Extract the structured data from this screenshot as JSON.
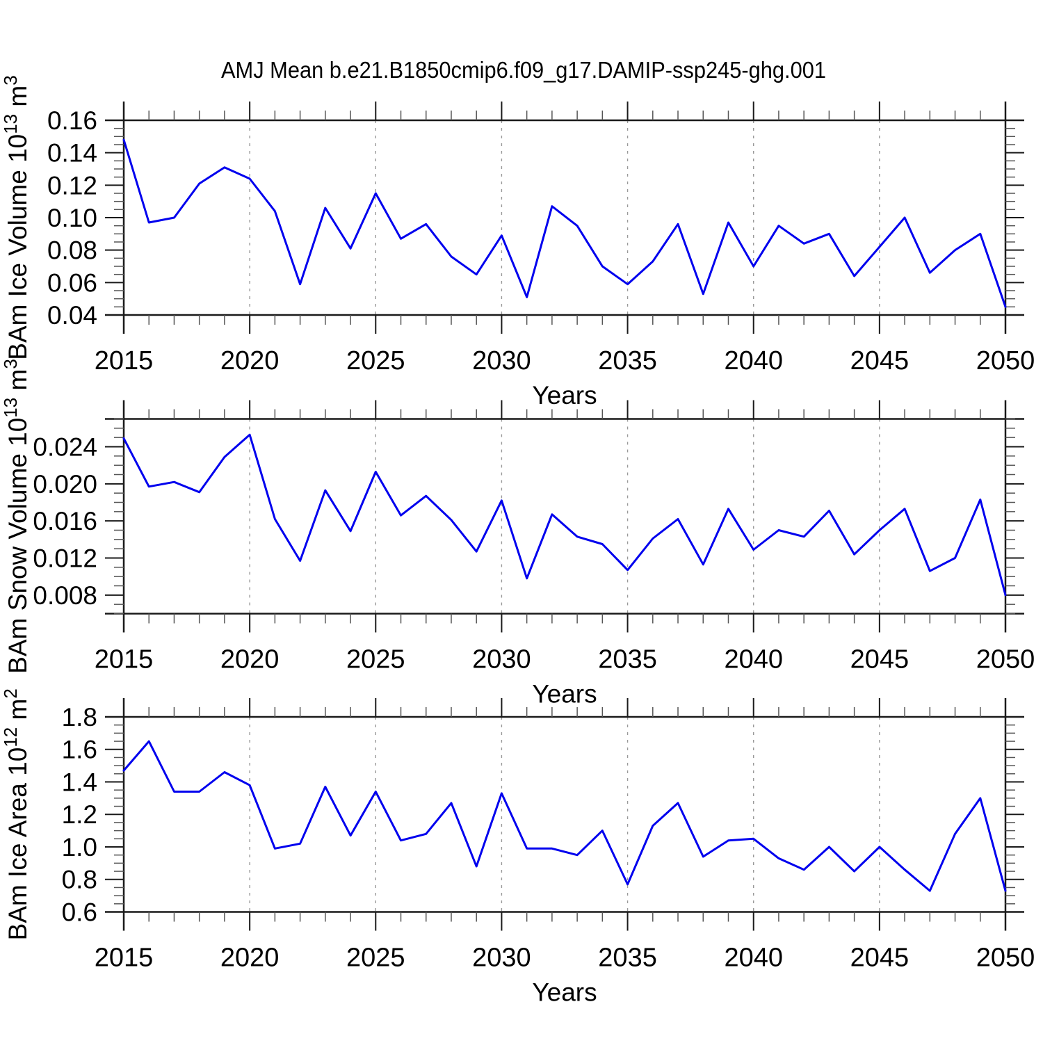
{
  "title": "AMJ Mean b.e21.B1850cmip6.f09_g17.DAMIP-ssp245-ghg.001",
  "line_color": "#0000ee",
  "grid_color": "#999999",
  "axis_color": "#1a1a1a",
  "minor_tick_color": "#555555",
  "chart_data": [
    {
      "type": "line",
      "ylabel": "BAm Ice Volume 10^13 m^3",
      "ylabel_segments": [
        {
          "t": "BAm Ice Volume 10"
        },
        {
          "t": "13",
          "sup": true
        },
        {
          "t": " m"
        },
        {
          "t": "3",
          "sup": true
        }
      ],
      "xlabel": "Years",
      "x": [
        2015,
        2016,
        2017,
        2018,
        2019,
        2020,
        2021,
        2022,
        2023,
        2024,
        2025,
        2026,
        2027,
        2028,
        2029,
        2030,
        2031,
        2032,
        2033,
        2034,
        2035,
        2036,
        2037,
        2038,
        2039,
        2040,
        2041,
        2042,
        2043,
        2044,
        2045,
        2046,
        2047,
        2048,
        2049,
        2050
      ],
      "values": [
        0.148,
        0.097,
        0.1,
        0.121,
        0.131,
        0.124,
        0.104,
        0.059,
        0.106,
        0.081,
        0.115,
        0.087,
        0.096,
        0.076,
        0.065,
        0.089,
        0.051,
        0.107,
        0.095,
        0.07,
        0.059,
        0.073,
        0.096,
        0.053,
        0.097,
        0.07,
        0.095,
        0.084,
        0.09,
        0.064,
        0.082,
        0.1,
        0.066,
        0.08,
        0.09,
        0.045
      ],
      "ylim": [
        0.04,
        0.16
      ],
      "ytick_values": [
        0.04,
        0.06,
        0.08,
        0.1,
        0.12,
        0.14,
        0.16
      ],
      "ytick_labels": [
        "0.04",
        "0.06",
        "0.08",
        "0.10",
        "0.12",
        "0.14",
        "0.16"
      ],
      "yminor_step": 0.005,
      "xticks": [
        2015,
        2020,
        2025,
        2030,
        2035,
        2040,
        2045,
        2050
      ],
      "grid": true,
      "legend": "none"
    },
    {
      "type": "line",
      "ylabel": "BAm Snow Volume 10^13 m^3",
      "ylabel_segments": [
        {
          "t": "BAm Snow Volume 10"
        },
        {
          "t": "13",
          "sup": true
        },
        {
          "t": " m"
        },
        {
          "t": "3",
          "sup": true
        }
      ],
      "xlabel": "Years",
      "x": [
        2015,
        2016,
        2017,
        2018,
        2019,
        2020,
        2021,
        2022,
        2023,
        2024,
        2025,
        2026,
        2027,
        2028,
        2029,
        2030,
        2031,
        2032,
        2033,
        2034,
        2035,
        2036,
        2037,
        2038,
        2039,
        2040,
        2041,
        2042,
        2043,
        2044,
        2045,
        2046,
        2047,
        2048,
        2049,
        2050
      ],
      "values": [
        0.0249,
        0.0197,
        0.0202,
        0.0191,
        0.0229,
        0.0253,
        0.0162,
        0.0117,
        0.0193,
        0.0149,
        0.0213,
        0.0166,
        0.0187,
        0.0161,
        0.0127,
        0.0182,
        0.0098,
        0.0167,
        0.0143,
        0.0135,
        0.0107,
        0.0141,
        0.0162,
        0.0113,
        0.0173,
        0.0129,
        0.015,
        0.0143,
        0.0171,
        0.0124,
        0.015,
        0.0173,
        0.0106,
        0.012,
        0.0183,
        0.008
      ],
      "ylim": [
        0.006,
        0.027
      ],
      "ytick_values": [
        0.008,
        0.012,
        0.016,
        0.02,
        0.024
      ],
      "ytick_labels": [
        "0.008",
        "0.012",
        "0.016",
        "0.020",
        "0.024"
      ],
      "yminor_step": 0.001,
      "xticks": [
        2015,
        2020,
        2025,
        2030,
        2035,
        2040,
        2045,
        2050
      ],
      "grid": true,
      "legend": "none"
    },
    {
      "type": "line",
      "ylabel": "BAm Ice Area 10^12 m^2",
      "ylabel_segments": [
        {
          "t": "BAm Ice Area 10"
        },
        {
          "t": "12",
          "sup": true
        },
        {
          "t": " m"
        },
        {
          "t": "2",
          "sup": true
        }
      ],
      "xlabel": "Years",
      "x": [
        2015,
        2016,
        2017,
        2018,
        2019,
        2020,
        2021,
        2022,
        2023,
        2024,
        2025,
        2026,
        2027,
        2028,
        2029,
        2030,
        2031,
        2032,
        2033,
        2034,
        2035,
        2036,
        2037,
        2038,
        2039,
        2040,
        2041,
        2042,
        2043,
        2044,
        2045,
        2046,
        2047,
        2048,
        2049,
        2050
      ],
      "values": [
        1.47,
        1.65,
        1.34,
        1.34,
        1.46,
        1.38,
        0.99,
        1.02,
        1.37,
        1.07,
        1.34,
        1.04,
        1.08,
        1.27,
        0.88,
        1.33,
        0.99,
        0.99,
        0.95,
        1.1,
        0.77,
        1.13,
        1.27,
        0.94,
        1.04,
        1.05,
        0.93,
        0.86,
        1.0,
        0.85,
        1.0,
        0.86,
        0.73,
        1.08,
        1.3,
        0.73
      ],
      "ylim": [
        0.6,
        1.8
      ],
      "ytick_values": [
        0.6,
        0.8,
        1.0,
        1.2,
        1.4,
        1.6,
        1.8
      ],
      "ytick_labels": [
        "0.6",
        "0.8",
        "1.0",
        "1.2",
        "1.4",
        "1.6",
        "1.8"
      ],
      "yminor_step": 0.05,
      "xticks": [
        2015,
        2020,
        2025,
        2030,
        2035,
        2040,
        2045,
        2050
      ],
      "grid": true,
      "legend": "none"
    }
  ]
}
